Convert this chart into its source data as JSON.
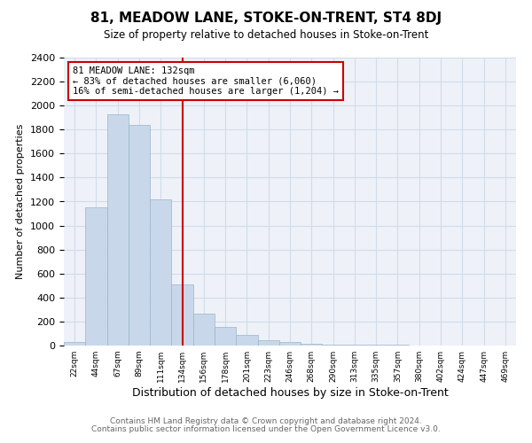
{
  "title": "81, MEADOW LANE, STOKE-ON-TRENT, ST4 8DJ",
  "subtitle": "Size of property relative to detached houses in Stoke-on-Trent",
  "xlabel": "Distribution of detached houses by size in Stoke-on-Trent",
  "ylabel": "Number of detached properties",
  "footnote1": "Contains HM Land Registry data © Crown copyright and database right 2024.",
  "footnote2": "Contains public sector information licensed under the Open Government Licence v3.0.",
  "annotation_title": "81 MEADOW LANE: 132sqm",
  "annotation_line1": "← 83% of detached houses are smaller (6,060)",
  "annotation_line2": "16% of semi-detached houses are larger (1,204) →",
  "property_line_x": 5,
  "bar_color": "#c8d8ea",
  "bar_edge_color": "#9ab4cc",
  "line_color": "#cc0000",
  "annotation_box_color": "#cc0000",
  "grid_color": "#d0dce8",
  "bg_color": "#eef2f8",
  "categories": [
    "22sqm",
    "44sqm",
    "67sqm",
    "89sqm",
    "111sqm",
    "134sqm",
    "156sqm",
    "178sqm",
    "201sqm",
    "223sqm",
    "246sqm",
    "268sqm",
    "290sqm",
    "313sqm",
    "335sqm",
    "357sqm",
    "380sqm",
    "402sqm",
    "424sqm",
    "447sqm",
    "469sqm"
  ],
  "values": [
    30,
    1150,
    1930,
    1840,
    1220,
    510,
    265,
    155,
    90,
    47,
    30,
    18,
    10,
    7,
    5,
    4,
    3,
    2,
    0,
    0,
    0
  ],
  "ylim": [
    0,
    2400
  ],
  "yticks": [
    0,
    200,
    400,
    600,
    800,
    1000,
    1200,
    1400,
    1600,
    1800,
    2000,
    2200,
    2400
  ],
  "num_bins": 21
}
